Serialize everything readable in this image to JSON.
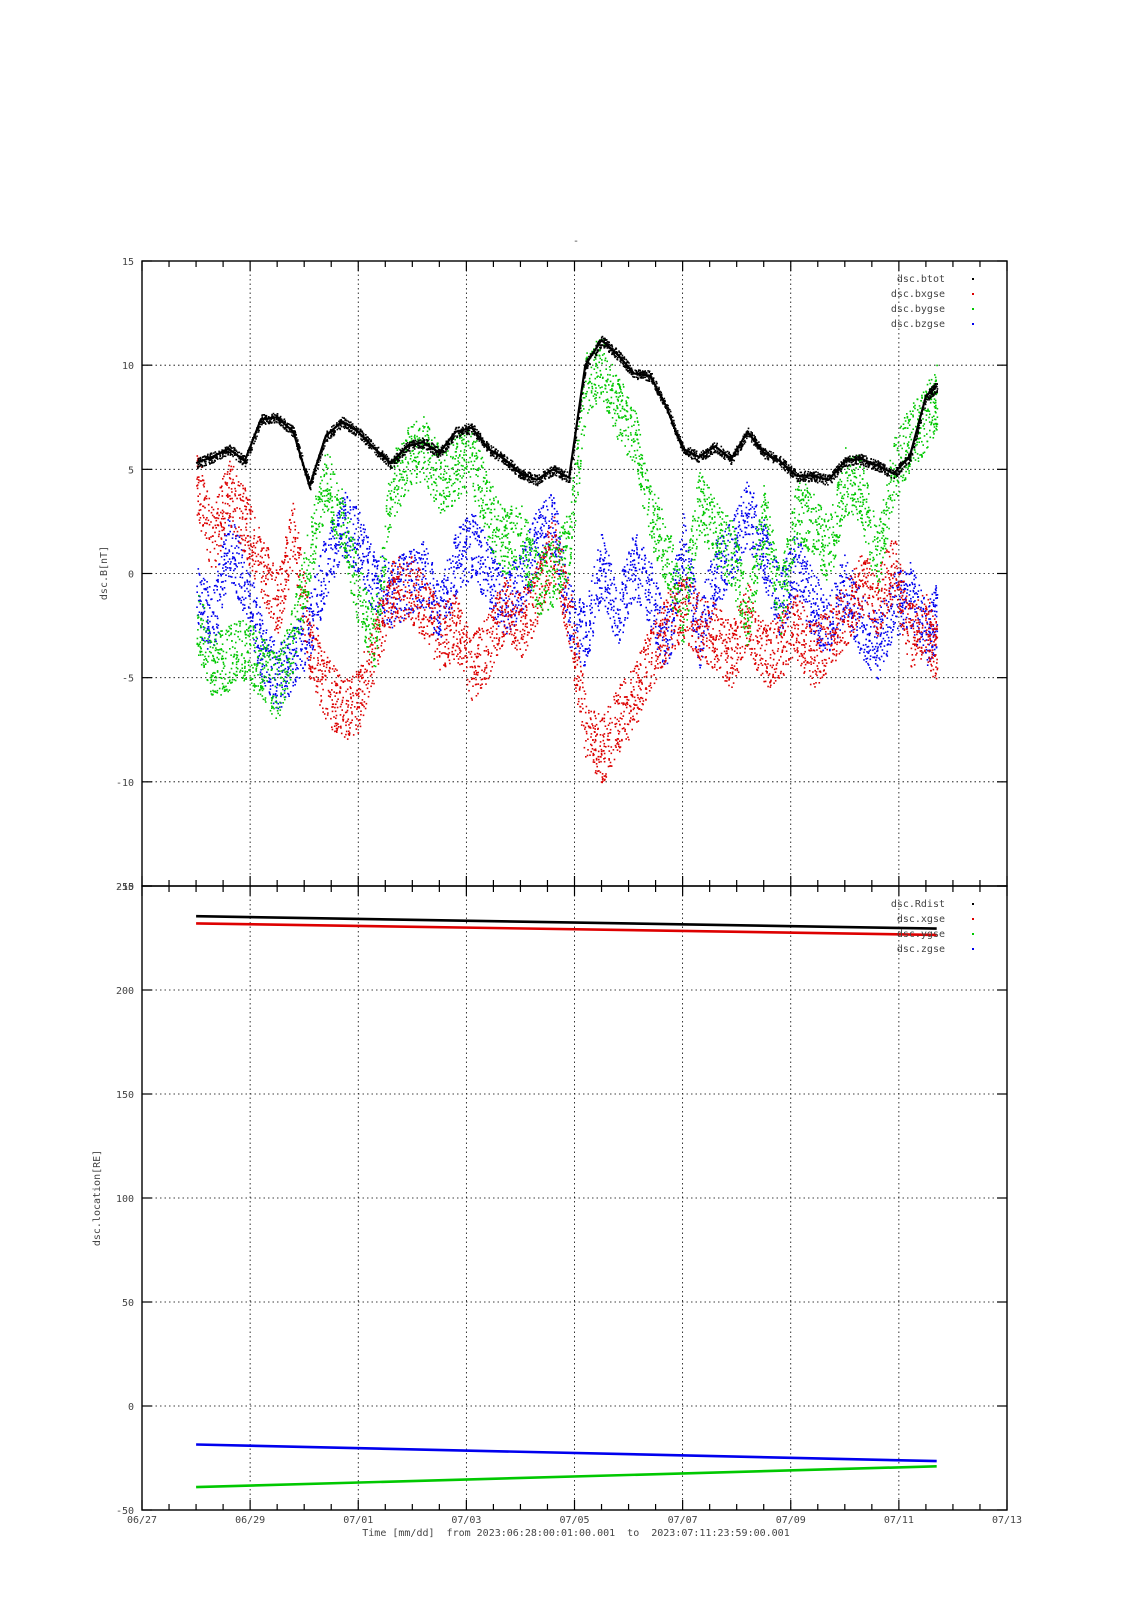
{
  "figure": {
    "title": "-",
    "xlabel": "Time [mm/dd]  from 2023:06:28:00:01:00.001  to  2023:07:11:23:59:00.001"
  },
  "chart_data": [
    {
      "type": "scatter",
      "ylabel": "dsc.B[nT]",
      "ylim": [
        -15,
        15
      ],
      "yticks": [
        15,
        10,
        5,
        0,
        -5,
        -10,
        -15
      ],
      "xlim_day": [
        0,
        16
      ],
      "xticks": [
        "06/27",
        "06/29",
        "07/01",
        "07/03",
        "07/05",
        "07/07",
        "07/09",
        "07/11",
        "07/13"
      ],
      "grid": true,
      "legend_position": "top-right",
      "series": [
        {
          "name": "dsc.btot",
          "color": "#000000",
          "x": [
            1.0,
            1.3,
            1.6,
            1.9,
            2.2,
            2.5,
            2.8,
            3.1,
            3.4,
            3.7,
            4.0,
            4.3,
            4.6,
            4.9,
            5.2,
            5.5,
            5.8,
            6.1,
            6.4,
            6.7,
            7.0,
            7.3,
            7.6,
            7.9,
            8.2,
            8.5,
            8.8,
            9.1,
            9.4,
            9.7,
            10.0,
            10.3,
            10.6,
            10.9,
            11.2,
            11.5,
            11.8,
            12.1,
            12.4,
            12.7,
            13.0,
            13.3,
            13.6,
            13.9,
            14.2,
            14.5,
            14.7
          ],
          "y": [
            5.3,
            5.6,
            6.0,
            5.4,
            7.4,
            7.5,
            6.8,
            4.2,
            6.6,
            7.3,
            6.8,
            6.0,
            5.3,
            6.1,
            6.3,
            5.8,
            6.8,
            7.0,
            6.0,
            5.5,
            4.8,
            4.5,
            5.0,
            4.6,
            10.0,
            11.2,
            10.5,
            9.6,
            9.5,
            8.0,
            6.0,
            5.6,
            6.1,
            5.5,
            6.8,
            5.8,
            5.4,
            4.7,
            4.7,
            4.5,
            5.4,
            5.5,
            5.2,
            4.8,
            5.6,
            8.5,
            9.0
          ]
        },
        {
          "name": "dsc.bxgse",
          "color": "#dd0000",
          "x": [
            1.0,
            1.3,
            1.6,
            1.9,
            2.2,
            2.5,
            2.8,
            3.1,
            3.4,
            3.7,
            4.0,
            4.3,
            4.6,
            4.9,
            5.2,
            5.5,
            5.8,
            6.1,
            6.4,
            6.7,
            7.0,
            7.3,
            7.6,
            7.9,
            8.2,
            8.5,
            8.8,
            9.1,
            9.4,
            9.7,
            10.0,
            10.3,
            10.6,
            10.9,
            11.2,
            11.5,
            11.8,
            12.1,
            12.4,
            12.7,
            13.0,
            13.3,
            13.6,
            13.9,
            14.2,
            14.5,
            14.7
          ],
          "y": [
            4.5,
            1.5,
            4.0,
            2.5,
            0.5,
            -1.5,
            2.0,
            -3.5,
            -5.5,
            -6.5,
            -6.0,
            -3.5,
            -1.0,
            -0.5,
            -1.5,
            -3.0,
            -2.5,
            -4.5,
            -3.5,
            -1.5,
            -2.5,
            -1.0,
            1.5,
            -2.0,
            -7.5,
            -8.5,
            -7.0,
            -6.0,
            -4.0,
            -2.5,
            -1.5,
            -2.5,
            -3.0,
            -4.0,
            -2.0,
            -4.0,
            -3.5,
            -2.5,
            -4.0,
            -3.0,
            -2.0,
            -0.5,
            -1.5,
            0.5,
            -3.0,
            -2.5,
            -4.0
          ]
        },
        {
          "name": "dsc.bygse",
          "color": "#00c800",
          "x": [
            1.0,
            1.3,
            1.6,
            1.9,
            2.2,
            2.5,
            2.8,
            3.1,
            3.4,
            3.7,
            4.0,
            4.3,
            4.6,
            4.9,
            5.2,
            5.5,
            5.8,
            6.1,
            6.4,
            6.7,
            7.0,
            7.3,
            7.6,
            7.9,
            8.2,
            8.5,
            8.8,
            9.1,
            9.4,
            9.7,
            10.0,
            10.3,
            10.6,
            10.9,
            11.2,
            11.5,
            11.8,
            12.1,
            12.4,
            12.7,
            13.0,
            13.3,
            13.6,
            13.9,
            14.2,
            14.5,
            14.7
          ],
          "y": [
            -2.0,
            -4.5,
            -4.0,
            -3.5,
            -4.5,
            -5.5,
            -3.0,
            1.0,
            4.5,
            2.5,
            -1.0,
            -3.0,
            4.0,
            5.5,
            6.0,
            4.5,
            5.0,
            5.5,
            3.0,
            1.5,
            2.0,
            -0.5,
            0.0,
            1.5,
            9.0,
            10.0,
            8.0,
            6.5,
            3.0,
            1.0,
            -2.0,
            3.5,
            2.0,
            1.0,
            -2.0,
            3.0,
            -1.5,
            3.0,
            2.5,
            1.0,
            4.5,
            4.0,
            0.5,
            5.0,
            6.5,
            7.5,
            8.5
          ]
        },
        {
          "name": "dsc.bzgse",
          "color": "#0000ee",
          "x": [
            1.0,
            1.3,
            1.6,
            1.9,
            2.2,
            2.5,
            2.8,
            3.1,
            3.4,
            3.7,
            4.0,
            4.3,
            4.6,
            4.9,
            5.2,
            5.5,
            5.8,
            6.1,
            6.4,
            6.7,
            7.0,
            7.3,
            7.6,
            7.9,
            8.2,
            8.5,
            8.8,
            9.1,
            9.4,
            9.7,
            10.0,
            10.3,
            10.6,
            10.9,
            11.2,
            11.5,
            11.8,
            12.1,
            12.4,
            12.7,
            13.0,
            13.3,
            13.6,
            13.9,
            14.2,
            14.5,
            14.7
          ],
          "y": [
            -1.0,
            -2.5,
            1.5,
            -0.5,
            -3.5,
            -5.0,
            -4.0,
            -2.5,
            0.5,
            2.5,
            1.5,
            -0.5,
            -1.0,
            -0.5,
            0.0,
            -2.0,
            0.5,
            1.5,
            0.0,
            -1.5,
            -0.5,
            1.5,
            2.5,
            -2.0,
            -3.0,
            0.5,
            -2.0,
            0.5,
            -1.0,
            -3.5,
            1.5,
            -3.0,
            0.0,
            1.0,
            3.0,
            1.0,
            -1.5,
            0.5,
            -1.5,
            -2.5,
            -0.5,
            -2.5,
            -3.5,
            -1.5,
            -1.0,
            -3.0,
            -2.0
          ]
        }
      ]
    },
    {
      "type": "line",
      "ylabel": "dsc.location[RE]",
      "ylim": [
        -50,
        250
      ],
      "yticks": [
        250,
        200,
        150,
        100,
        50,
        0,
        -50
      ],
      "xlim_day": [
        0,
        16
      ],
      "xticks": [
        "06/27",
        "06/29",
        "07/01",
        "07/03",
        "07/05",
        "07/07",
        "07/09",
        "07/11",
        "07/13"
      ],
      "grid": true,
      "legend_position": "top-right",
      "series": [
        {
          "name": "dsc.Rdist",
          "color": "#000000",
          "x": [
            1.0,
            14.7
          ],
          "y": [
            235.5,
            229.5
          ]
        },
        {
          "name": "dsc.xgse",
          "color": "#dd0000",
          "x": [
            1.0,
            14.7
          ],
          "y": [
            232.0,
            226.5
          ]
        },
        {
          "name": "dsc.ygse",
          "color": "#00c800",
          "x": [
            1.0,
            14.7
          ],
          "y": [
            -39.0,
            -29.0
          ]
        },
        {
          "name": "dsc.zgse",
          "color": "#0000ee",
          "x": [
            1.0,
            14.7
          ],
          "y": [
            -18.5,
            -26.5
          ]
        }
      ]
    }
  ]
}
